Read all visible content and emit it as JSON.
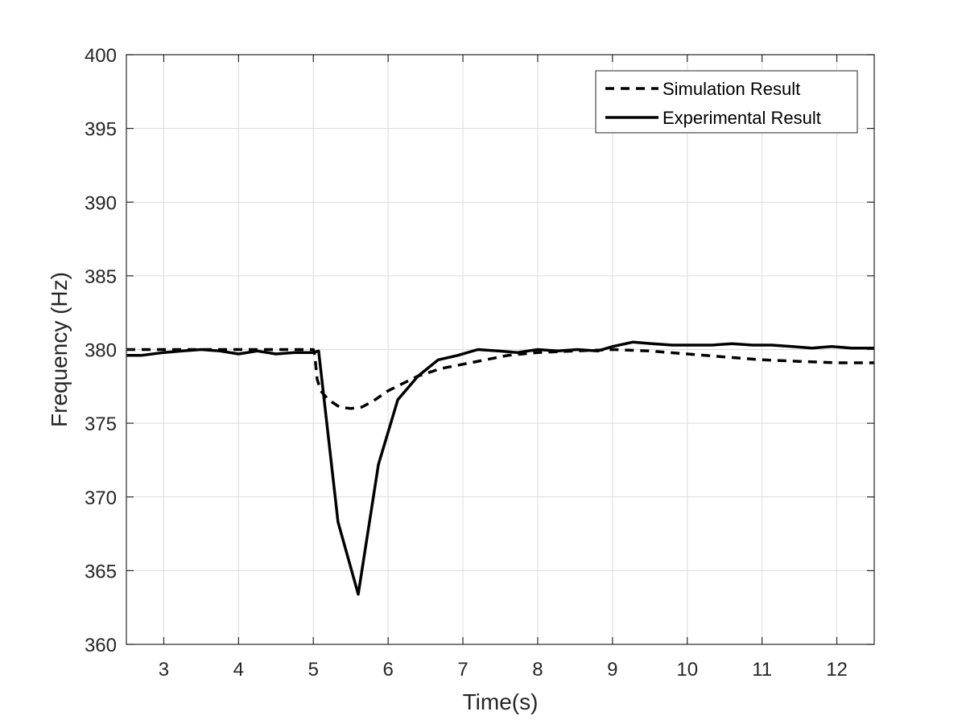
{
  "chart_data": {
    "type": "line",
    "title": "",
    "xlabel": "Time(s)",
    "ylabel": "Frequency (Hz)",
    "xlim": [
      2.5,
      12.5
    ],
    "ylim": [
      360,
      400
    ],
    "xticks": [
      3,
      4,
      5,
      6,
      7,
      8,
      9,
      10,
      11,
      12
    ],
    "yticks": [
      360,
      365,
      370,
      375,
      380,
      385,
      390,
      395,
      400
    ],
    "grid": true,
    "legend_position": "top-right",
    "series": [
      {
        "name": "Simulation Result",
        "style": "dashed",
        "color": "#000000",
        "x": [
          2.5,
          3.0,
          4.0,
          5.0,
          5.02,
          5.05,
          5.1,
          5.2,
          5.35,
          5.5,
          5.65,
          5.8,
          6.0,
          6.2,
          6.4,
          6.7,
          7.0,
          7.3,
          7.6,
          8.0,
          8.5,
          9.0,
          9.5,
          10.0,
          10.5,
          11.0,
          11.5,
          12.0,
          12.5
        ],
        "y": [
          380.0,
          380.0,
          380.0,
          380.0,
          379.6,
          378.0,
          377.2,
          376.6,
          376.1,
          376.0,
          376.1,
          376.5,
          377.2,
          377.7,
          378.2,
          378.7,
          379.0,
          379.3,
          379.6,
          379.8,
          379.9,
          380.0,
          379.9,
          379.7,
          379.5,
          379.3,
          379.2,
          379.1,
          379.1
        ]
      },
      {
        "name": "Experimental Result",
        "style": "solid",
        "color": "#000000",
        "x": [
          2.5,
          2.7,
          3.0,
          3.25,
          3.5,
          3.75,
          4.0,
          4.25,
          4.5,
          4.75,
          5.0,
          5.07,
          5.33,
          5.6,
          5.87,
          6.13,
          6.4,
          6.67,
          6.93,
          7.2,
          7.47,
          7.73,
          8.0,
          8.27,
          8.53,
          8.8,
          9.0,
          9.27,
          9.53,
          9.8,
          10.07,
          10.33,
          10.6,
          10.87,
          11.13,
          11.4,
          11.67,
          11.93,
          12.2,
          12.5
        ],
        "y": [
          379.6,
          379.6,
          379.8,
          379.9,
          380.0,
          379.9,
          379.7,
          379.9,
          379.7,
          379.8,
          379.8,
          379.9,
          368.3,
          363.4,
          372.2,
          376.6,
          378.2,
          379.3,
          379.6,
          380.0,
          379.9,
          379.8,
          380.0,
          379.9,
          380.0,
          379.9,
          380.2,
          380.5,
          380.4,
          380.3,
          380.3,
          380.3,
          380.4,
          380.3,
          380.3,
          380.2,
          380.1,
          380.2,
          380.1,
          380.1
        ]
      }
    ]
  }
}
